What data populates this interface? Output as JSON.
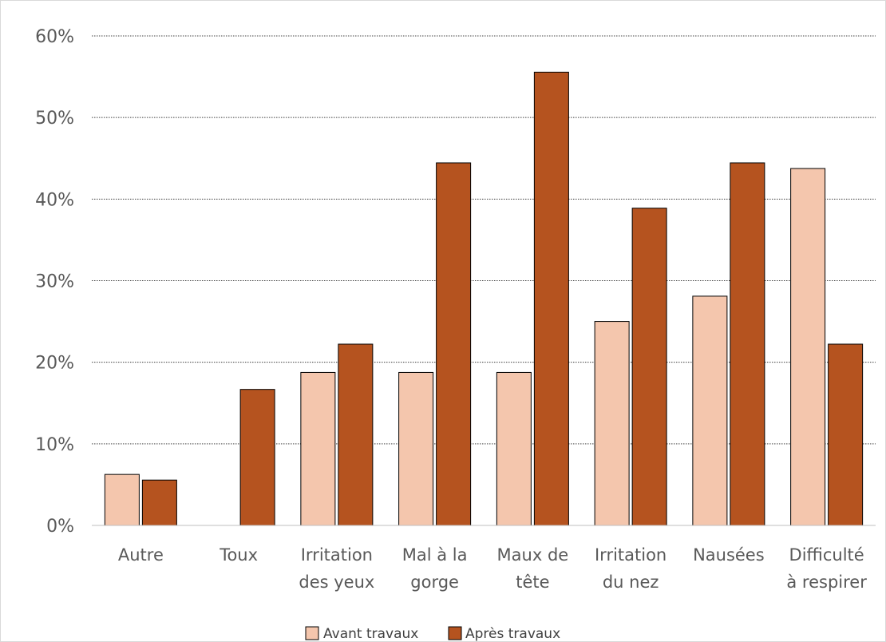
{
  "chart_data": {
    "type": "bar",
    "title": "",
    "xlabel": "",
    "ylabel": "",
    "ylim": [
      0,
      60
    ],
    "y_ticks": [
      0,
      10,
      20,
      30,
      40,
      50,
      60
    ],
    "y_tick_suffix": "%",
    "grid": "horizontal-dotted",
    "legend_position": "bottom",
    "categories": [
      [
        "Autre"
      ],
      [
        "Toux"
      ],
      [
        "Irritation",
        "des yeux"
      ],
      [
        "Mal à la",
        "gorge"
      ],
      [
        "Maux de",
        "tête"
      ],
      [
        "Irritation",
        "du nez"
      ],
      [
        "Nausées"
      ],
      [
        "Difficulté",
        "à respirer"
      ]
    ],
    "series": [
      {
        "name": "Avant travaux",
        "color": "#f4c6ad",
        "values": [
          6.25,
          0,
          18.75,
          18.75,
          18.75,
          25,
          28.1,
          43.75
        ]
      },
      {
        "name": "Après travaux",
        "color": "#b5531f",
        "values": [
          5.56,
          16.67,
          22.22,
          44.44,
          55.56,
          38.89,
          44.44,
          22.22
        ]
      }
    ]
  }
}
